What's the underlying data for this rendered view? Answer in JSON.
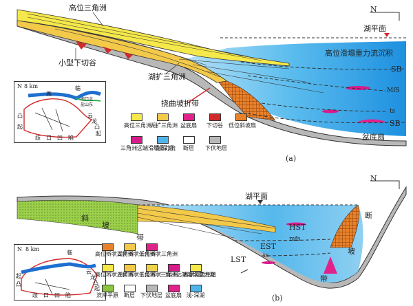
{
  "panel_a": {
    "caption": "(a)",
    "north": "N",
    "lake_level": "湖平面",
    "hst_delta": "高位三角洲",
    "incised_valley": "小型下切谷",
    "tst_delta": "湖扩三角洲",
    "flexure_belt": "挠曲坡折带",
    "slump_deposit": "高位滑塌重力流沉积",
    "basin_fan": "盆底扇",
    "sb_top": "SB",
    "sb_bottom": "SB",
    "mfs": "MfS",
    "ts": "ts",
    "map": {
      "scale": "8 km",
      "north": "N",
      "places": [
        "高",
        "临",
        "南口北",
        "盐山东",
        "凸",
        "起",
        "云",
        "龙",
        "凸",
        "起",
        "歧",
        "口",
        "凹",
        "陷"
      ]
    },
    "legend": [
      {
        "name": "高位三角洲",
        "color": "#f5e84a"
      },
      {
        "name": "湖扩三角洲",
        "color": "#f3c94a"
      },
      {
        "name": "盆底扇",
        "color": "#e0238a"
      },
      {
        "name": "下切谷",
        "color": "#d02a2a"
      },
      {
        "name": "低位斜坡扇",
        "color": "#e8822a"
      },
      {
        "name": "三角洲远端滑塌重力流",
        "color": "#d81b8a"
      },
      {
        "name": "浅-深湖",
        "color": "#4fb4ea"
      },
      {
        "name": "断层",
        "color": "#ffffff"
      },
      {
        "name": "下伏地层",
        "color": "#b8b8b8"
      }
    ]
  },
  "panel_b": {
    "caption": "(b)",
    "north": "N",
    "lake_level": "湖平面",
    "slope_left": [
      "斜",
      "坡",
      "带"
    ],
    "fault_right": [
      "断",
      "坡",
      "带"
    ],
    "hst": "HST",
    "est": "EST",
    "lst": "LST",
    "mfs": "mfs",
    "ts": "ts",
    "map": {
      "scale": "8 km",
      "north": "N",
      "places": [
        "临",
        "起",
        "凸",
        "歧",
        "口",
        "凹",
        "陷",
        "云",
        "龙",
        "凸",
        "起"
      ]
    },
    "legend": [
      {
        "name": "高位辫状三角洲",
        "color": "#e8822a"
      },
      {
        "name": "湖扩辫状三角洲",
        "color": "#f3c94a"
      },
      {
        "name": "低位辫状三角洲",
        "color": "#e0238a"
      },
      {
        "name": "高位辫状三角洲",
        "color": "#f5e84a"
      },
      {
        "name": "湖扩辫状三角洲",
        "color": "#f3c94a"
      },
      {
        "name": "低位辫状三角洲",
        "color": "#ecd24a"
      },
      {
        "name": "三角洲远端滑塌重力流",
        "color": "#d81b8a"
      },
      {
        "name": "辫状河道充填",
        "color": "#f5e84a"
      },
      {
        "name": "滨岸平原",
        "color": "#8cc63f"
      },
      {
        "name": "断层",
        "color": "#ffffff"
      },
      {
        "name": "下伏地层",
        "color": "#b8b8b8"
      },
      {
        "name": "盆底扇",
        "color": "#e0238a"
      },
      {
        "name": "浅-深湖",
        "color": "#4fb4ea"
      }
    ]
  }
}
